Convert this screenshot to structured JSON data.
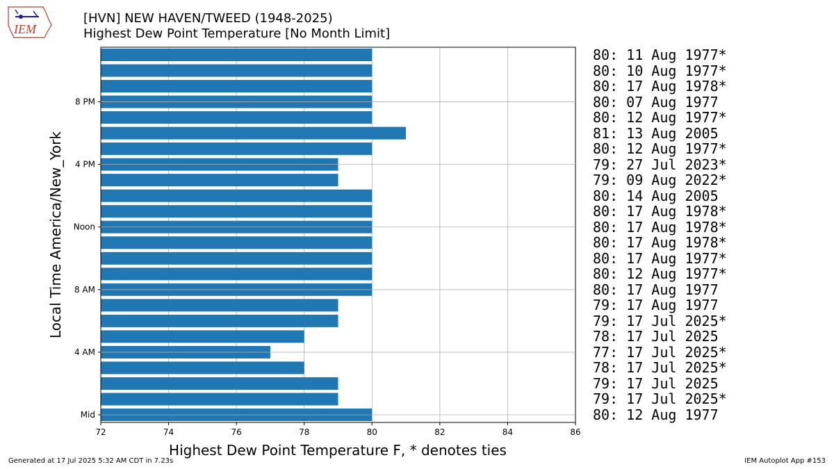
{
  "header": {
    "logo_text": "IEM",
    "title_line1": "[HVN] NEW HAVEN/TWEED (1948-2025)",
    "title_line2": "Highest Dew Point Temperature [No Month Limit]"
  },
  "footer": {
    "generated": "Generated at 17 Jul 2025 5:32 AM CDT in 7.23s",
    "app": "IEM Autoplot App #153"
  },
  "chart_data": {
    "type": "bar",
    "orientation": "horizontal",
    "title": "[HVN] NEW HAVEN/TWEED (1948-2025)",
    "subtitle": "Highest Dew Point Temperature [No Month Limit]",
    "xlabel": "Highest Dew Point Temperature F, * denotes ties",
    "ylabel": "Local Time America/New_York",
    "xlim": [
      72,
      86
    ],
    "x_ticks": [
      72,
      74,
      76,
      78,
      80,
      82,
      84,
      86
    ],
    "y_ticks": [
      {
        "hour": 0,
        "label": "Mid"
      },
      {
        "hour": 4,
        "label": "4 AM"
      },
      {
        "hour": 8,
        "label": "8 AM"
      },
      {
        "hour": 12,
        "label": "Noon"
      },
      {
        "hour": 16,
        "label": "4 PM"
      },
      {
        "hour": 20,
        "label": "8 PM"
      }
    ],
    "grid": true,
    "bar_color": "#1f77b4",
    "hours": [
      0,
      1,
      2,
      3,
      4,
      5,
      6,
      7,
      8,
      9,
      10,
      11,
      12,
      13,
      14,
      15,
      16,
      17,
      18,
      19,
      20,
      21,
      22,
      23
    ],
    "values": [
      80,
      79,
      79,
      78,
      77,
      78,
      79,
      79,
      80,
      80,
      80,
      80,
      80,
      80,
      80,
      79,
      79,
      80,
      81,
      80,
      80,
      80,
      80,
      80
    ],
    "annotations": [
      "80: 12 Aug 1977",
      "79: 17 Jul 2025*",
      "79: 17 Jul 2025",
      "78: 17 Jul 2025*",
      "77: 17 Jul 2025*",
      "78: 17 Jul 2025",
      "79: 17 Jul 2025*",
      "79: 17 Aug 1977",
      "80: 17 Aug 1977",
      "80: 12 Aug 1977*",
      "80: 17 Aug 1977*",
      "80: 17 Aug 1978*",
      "80: 17 Aug 1978*",
      "80: 17 Aug 1978*",
      "80: 14 Aug 2005",
      "79: 09 Aug 2022*",
      "79: 27 Jul 2023*",
      "80: 12 Aug 1977*",
      "81: 13 Aug 2005",
      "80: 12 Aug 1977*",
      "80: 07 Aug 1977",
      "80: 17 Aug 1978*",
      "80: 10 Aug 1977*",
      "80: 11 Aug 1977*"
    ]
  }
}
